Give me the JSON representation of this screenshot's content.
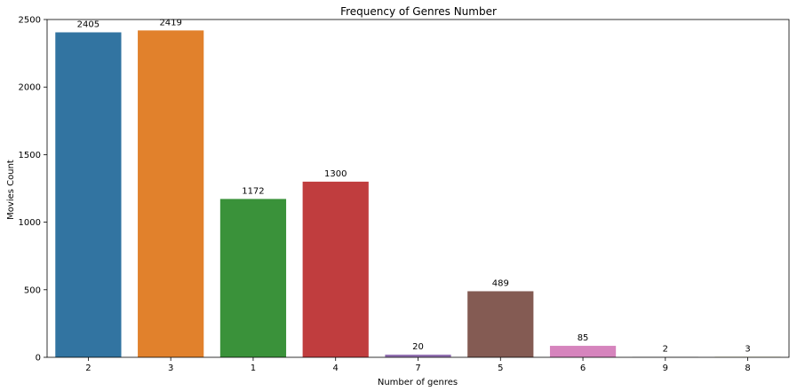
{
  "chart_data": {
    "type": "bar",
    "title": "Frequency of Genres Number",
    "xlabel": "Number of genres",
    "ylabel": "Movies Count",
    "categories": [
      "2",
      "3",
      "1",
      "4",
      "7",
      "5",
      "6",
      "9",
      "8"
    ],
    "values": [
      2405,
      2419,
      1172,
      1300,
      20,
      489,
      85,
      2,
      3
    ],
    "data_labels": [
      "2405",
      "2419",
      "1172",
      "1300",
      "20",
      "489",
      "85",
      "2",
      "3"
    ],
    "colors": [
      "#3274a1",
      "#e1812c",
      "#3a923a",
      "#c03d3e",
      "#9372b2",
      "#845b53",
      "#d684bd",
      "#7f7f7f",
      "#a9aa35"
    ],
    "ylim": [
      0,
      2500
    ],
    "yticks": [
      0,
      500,
      1000,
      1500,
      2000,
      2500
    ],
    "ytick_labels": [
      "0",
      "500",
      "1000",
      "1500",
      "2000",
      "2500"
    ],
    "grid": false,
    "legend": "none"
  }
}
